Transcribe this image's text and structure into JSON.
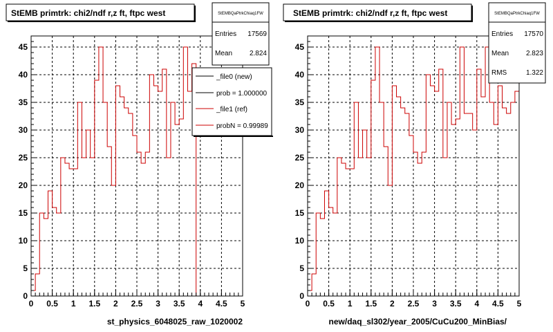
{
  "colors": {
    "background": "#ffffff",
    "axes": "#000000",
    "grid": "#000000",
    "ref_line": "#cc0000",
    "new_line": "#000000"
  },
  "chart_data": [
    {
      "type": "step-histogram",
      "title": "StEMB primtrk: chi2/ndf r,z ft, ftpc west",
      "xlabel": "st_physics_6048025_raw_1020002",
      "ylabel": "",
      "xlim": [
        0,
        5
      ],
      "ylim": [
        0,
        47
      ],
      "x_ticks": [
        0,
        0.5,
        1,
        1.5,
        2,
        2.5,
        3,
        3.5,
        4,
        4.5,
        5
      ],
      "x_tick_labels": [
        "0",
        "0.5",
        "1",
        "1.5",
        "2",
        "2.5",
        "3",
        "3.5",
        "4",
        "4.5",
        "5"
      ],
      "y_ticks": [
        0,
        5,
        10,
        15,
        20,
        25,
        30,
        35,
        40,
        45
      ],
      "y_tick_labels": [
        "0",
        "5",
        "10",
        "15",
        "20",
        "25",
        "30",
        "35",
        "40",
        "45"
      ],
      "grid": true,
      "bin_width": 0.1,
      "series": [
        {
          "name": "_file1 (ref)",
          "color": "#cc0000",
          "x": [
            0.0,
            0.1,
            0.2,
            0.3,
            0.4,
            0.5,
            0.6,
            0.7,
            0.8,
            0.9,
            1.0,
            1.1,
            1.2,
            1.3,
            1.4,
            1.5,
            1.6,
            1.7,
            1.8,
            1.9,
            2.0,
            2.1,
            2.2,
            2.3,
            2.4,
            2.5,
            2.6,
            2.7,
            2.8,
            2.9,
            3.0,
            3.1,
            3.2,
            3.3,
            3.4,
            3.5,
            3.6,
            3.7,
            3.8
          ],
          "values": [
            1,
            4,
            15,
            14,
            19,
            16,
            15,
            25,
            24,
            23,
            23,
            35,
            25,
            30,
            25,
            39,
            45,
            35,
            27,
            20,
            38,
            36,
            34,
            33,
            29,
            26,
            24,
            26,
            40,
            38,
            37,
            41,
            25,
            35,
            31,
            32,
            45,
            37,
            42
          ]
        }
      ],
      "stats_box": {
        "header": "StEMBQaPtrkChiaq1FW",
        "rows": [
          {
            "label": "Entries",
            "value": "17569"
          },
          {
            "label": "Mean",
            "value": "2.824"
          }
        ]
      },
      "legend": {
        "position": "top-right",
        "entries": [
          {
            "label": "_file0 (new)",
            "color": "#000000"
          },
          {
            "label": "prob = 1.000000",
            "color": "#000000"
          },
          {
            "label": "_file1 (ref)",
            "color": "#cc0000"
          },
          {
            "label": "probN = 0.99989",
            "color": "#cc0000"
          }
        ]
      }
    },
    {
      "type": "step-histogram",
      "title": "StEMB primtrk: chi2/ndf r,z ft, ftpc west",
      "xlabel": "new/daq_sl302/year_2005/CuCu200_MinBias/",
      "ylabel": "",
      "xlim": [
        0,
        5
      ],
      "ylim": [
        0,
        47
      ],
      "x_ticks": [
        0,
        0.5,
        1,
        1.5,
        2,
        2.5,
        3,
        3.5,
        4,
        4.5,
        5
      ],
      "x_tick_labels": [
        "0",
        "0.5",
        "1",
        "1.5",
        "2",
        "2.5",
        "3",
        "3.5",
        "4",
        "4.5",
        "5"
      ],
      "y_ticks": [
        0,
        5,
        10,
        15,
        20,
        25,
        30,
        35,
        40,
        45
      ],
      "y_tick_labels": [
        "0",
        "5",
        "10",
        "15",
        "20",
        "25",
        "30",
        "35",
        "40",
        "45"
      ],
      "grid": true,
      "bin_width": 0.1,
      "series": [
        {
          "name": "",
          "color": "#cc0000",
          "x": [
            0.0,
            0.1,
            0.2,
            0.3,
            0.4,
            0.5,
            0.6,
            0.7,
            0.8,
            0.9,
            1.0,
            1.1,
            1.2,
            1.3,
            1.4,
            1.5,
            1.6,
            1.7,
            1.8,
            1.9,
            2.0,
            2.1,
            2.2,
            2.3,
            2.4,
            2.5,
            2.6,
            2.7,
            2.8,
            2.9,
            3.0,
            3.1,
            3.2,
            3.3,
            3.4,
            3.5,
            3.6,
            3.7,
            3.8,
            3.9,
            4.0,
            4.1,
            4.2,
            4.3,
            4.4,
            4.5,
            4.6,
            4.7,
            4.8,
            4.9
          ],
          "values": [
            1,
            4,
            15,
            14,
            19,
            16,
            15,
            25,
            24,
            23,
            23,
            35,
            25,
            30,
            25,
            39,
            45,
            35,
            27,
            20,
            38,
            36,
            34,
            33,
            29,
            26,
            24,
            26,
            40,
            38,
            37,
            41,
            25,
            35,
            31,
            32,
            45,
            33,
            33,
            30,
            41,
            36,
            45,
            35,
            31,
            38,
            34,
            33,
            35,
            37
          ]
        }
      ],
      "stats_box": {
        "header": "StEMBQaPtrkChiaq1FW",
        "rows": [
          {
            "label": "Entries",
            "value": "17570"
          },
          {
            "label": "Mean",
            "value": "2.823"
          },
          {
            "label": "RMS",
            "value": "1.322"
          }
        ]
      }
    }
  ]
}
